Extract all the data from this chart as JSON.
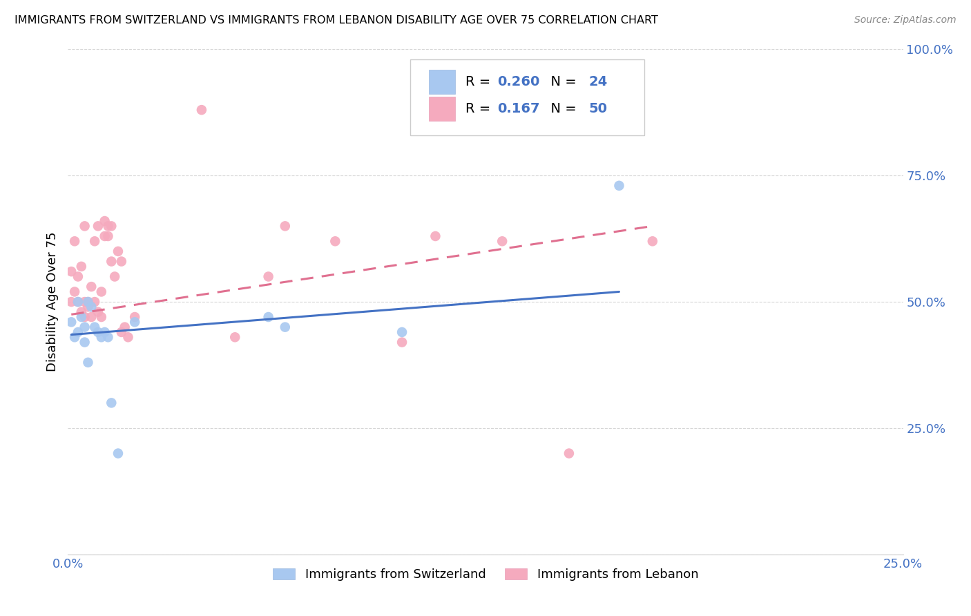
{
  "title": "IMMIGRANTS FROM SWITZERLAND VS IMMIGRANTS FROM LEBANON DISABILITY AGE OVER 75 CORRELATION CHART",
  "source": "Source: ZipAtlas.com",
  "ylabel": "Disability Age Over 75",
  "xlim": [
    0.0,
    0.25
  ],
  "ylim": [
    0.0,
    1.0
  ],
  "xticks": [
    0.0,
    0.05,
    0.1,
    0.15,
    0.2,
    0.25
  ],
  "yticks": [
    0.0,
    0.25,
    0.5,
    0.75,
    1.0
  ],
  "xticklabels": [
    "0.0%",
    "",
    "",
    "",
    "",
    "25.0%"
  ],
  "yticklabels": [
    "",
    "25.0%",
    "50.0%",
    "75.0%",
    "100.0%"
  ],
  "legend_bottom1": "Immigrants from Switzerland",
  "legend_bottom2": "Immigrants from Lebanon",
  "blue_color": "#A8C8F0",
  "pink_color": "#F5AABE",
  "blue_line_color": "#4472C4",
  "pink_line_color": "#E07090",
  "tick_color": "#4472C4",
  "grid_color": "#CCCCCC",
  "background_color": "#FFFFFF",
  "swiss_x": [
    0.001,
    0.002,
    0.003,
    0.003,
    0.004,
    0.005,
    0.005,
    0.006,
    0.006,
    0.007,
    0.008,
    0.009,
    0.01,
    0.011,
    0.012,
    0.013,
    0.015,
    0.02,
    0.06,
    0.065,
    0.1,
    0.165
  ],
  "swiss_y": [
    0.46,
    0.43,
    0.5,
    0.44,
    0.47,
    0.45,
    0.42,
    0.38,
    0.5,
    0.49,
    0.45,
    0.44,
    0.43,
    0.44,
    0.43,
    0.3,
    0.2,
    0.46,
    0.47,
    0.45,
    0.44,
    0.73
  ],
  "lebanon_x": [
    0.001,
    0.001,
    0.002,
    0.002,
    0.003,
    0.003,
    0.004,
    0.004,
    0.005,
    0.005,
    0.005,
    0.006,
    0.006,
    0.007,
    0.007,
    0.008,
    0.008,
    0.009,
    0.009,
    0.01,
    0.01,
    0.011,
    0.011,
    0.012,
    0.012,
    0.013,
    0.013,
    0.014,
    0.015,
    0.016,
    0.016,
    0.017,
    0.018,
    0.02,
    0.04,
    0.05,
    0.06,
    0.065,
    0.08,
    0.1,
    0.11,
    0.13,
    0.15,
    0.175
  ],
  "lebanon_y": [
    0.5,
    0.56,
    0.62,
    0.52,
    0.55,
    0.5,
    0.57,
    0.48,
    0.5,
    0.47,
    0.65,
    0.5,
    0.49,
    0.53,
    0.47,
    0.5,
    0.62,
    0.48,
    0.65,
    0.52,
    0.47,
    0.66,
    0.63,
    0.65,
    0.63,
    0.58,
    0.65,
    0.55,
    0.6,
    0.58,
    0.44,
    0.45,
    0.43,
    0.47,
    0.88,
    0.43,
    0.55,
    0.65,
    0.62,
    0.42,
    0.63,
    0.62,
    0.2,
    0.62
  ],
  "swiss_line_x": [
    0.001,
    0.165
  ],
  "swiss_line_y": [
    0.435,
    0.52
  ],
  "lebanon_line_x": [
    0.001,
    0.175
  ],
  "lebanon_line_y": [
    0.475,
    0.65
  ]
}
